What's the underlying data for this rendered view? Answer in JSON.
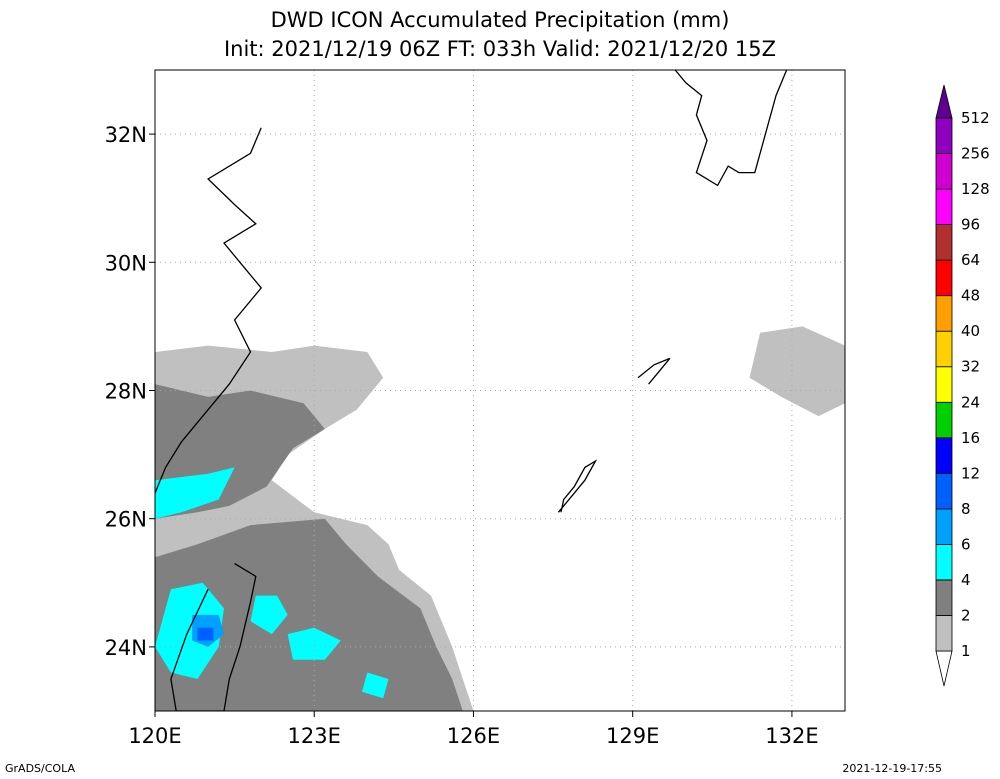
{
  "title_line1": "DWD ICON Accumulated Precipitation (mm)",
  "title_line2": "Init: 2021/12/19 06Z  FT: 033h  Valid: 2021/12/20 15Z",
  "footer_left": "GrADS/COLA",
  "footer_right": "2021-12-19-17:55",
  "chart_data": {
    "type": "heatmap",
    "title": "DWD ICON Accumulated Precipitation (mm)",
    "subtitle": "Init: 2021/12/19 06Z  FT: 033h  Valid: 2021/12/20 15Z",
    "xlim": [
      120,
      133
    ],
    "ylim": [
      23,
      33
    ],
    "grid": true,
    "x_ticks": [
      120,
      123,
      126,
      129,
      132
    ],
    "x_tick_labels": [
      "120E",
      "123E",
      "126E",
      "129E",
      "132E"
    ],
    "y_ticks": [
      24,
      26,
      28,
      30,
      32
    ],
    "y_tick_labels": [
      "24N",
      "26N",
      "28N",
      "30N",
      "32N"
    ],
    "legend": {
      "placement": "right",
      "levels": [
        1,
        2,
        4,
        6,
        8,
        12,
        16,
        24,
        32,
        40,
        48,
        64,
        96,
        128,
        256,
        512
      ],
      "colors": [
        "#ffffff",
        "#c0c0c0",
        "#808080",
        "#00ffff",
        "#00a0ff",
        "#0060ff",
        "#0000ff",
        "#00d000",
        "#ffff00",
        "#ffd000",
        "#ffa000",
        "#ff0000",
        "#b03030",
        "#ff00ff",
        "#d000d0",
        "#9000c0",
        "#600090"
      ]
    },
    "regions": [
      {
        "level": 1,
        "lonlat": [
          [
            120,
            28.6
          ],
          [
            121,
            28.7
          ],
          [
            122.2,
            28.6
          ],
          [
            123,
            28.7
          ],
          [
            124,
            28.6
          ],
          [
            124.3,
            28.2
          ],
          [
            123.8,
            27.7
          ],
          [
            123.2,
            27.4
          ],
          [
            122.5,
            27
          ],
          [
            122.2,
            26.6
          ],
          [
            123,
            26.1
          ],
          [
            124,
            25.9
          ],
          [
            124.4,
            25.6
          ],
          [
            124.6,
            25.2
          ],
          [
            125.2,
            24.8
          ],
          [
            125.6,
            24
          ],
          [
            125.8,
            23.5
          ],
          [
            126,
            23
          ],
          [
            120,
            23
          ]
        ]
      },
      {
        "level": 1,
        "lonlat": [
          [
            131.4,
            28.9
          ],
          [
            132.2,
            29
          ],
          [
            133,
            28.7
          ],
          [
            133,
            27.8
          ],
          [
            132.5,
            27.6
          ],
          [
            131.8,
            27.9
          ],
          [
            131.2,
            28.2
          ]
        ]
      },
      {
        "level": 2,
        "lonlat": [
          [
            120,
            28.1
          ],
          [
            121,
            27.9
          ],
          [
            121.8,
            28
          ],
          [
            122.8,
            27.8
          ],
          [
            123.2,
            27.4
          ],
          [
            122.6,
            27.1
          ],
          [
            122.1,
            26.5
          ],
          [
            121.4,
            26.2
          ],
          [
            120.8,
            26.1
          ],
          [
            120,
            26
          ]
        ]
      },
      {
        "level": 2,
        "lonlat": [
          [
            120,
            25.4
          ],
          [
            120.8,
            25.6
          ],
          [
            121.8,
            25.9
          ],
          [
            123.2,
            26
          ],
          [
            123.6,
            25.6
          ],
          [
            124.2,
            25.1
          ],
          [
            125,
            24.6
          ],
          [
            125.3,
            24
          ],
          [
            125.6,
            23.5
          ],
          [
            125.8,
            23
          ],
          [
            120,
            23
          ]
        ]
      },
      {
        "level": 4,
        "lonlat": [
          [
            120,
            26.6
          ],
          [
            121,
            26.7
          ],
          [
            121.5,
            26.8
          ],
          [
            121.2,
            26.3
          ],
          [
            120.5,
            26.1
          ],
          [
            120,
            26
          ]
        ]
      },
      {
        "level": 4,
        "lonlat": [
          [
            120.3,
            24.9
          ],
          [
            120.9,
            25
          ],
          [
            121.3,
            24.6
          ],
          [
            121.2,
            24
          ],
          [
            120.8,
            23.5
          ],
          [
            120.3,
            23.6
          ],
          [
            120,
            24
          ]
        ]
      },
      {
        "level": 4,
        "lonlat": [
          [
            121.9,
            24.8
          ],
          [
            122.3,
            24.8
          ],
          [
            122.5,
            24.5
          ],
          [
            122.2,
            24.2
          ],
          [
            121.8,
            24.4
          ]
        ]
      },
      {
        "level": 4,
        "lonlat": [
          [
            122.5,
            24.2
          ],
          [
            123,
            24.3
          ],
          [
            123.5,
            24.1
          ],
          [
            123.2,
            23.8
          ],
          [
            122.6,
            23.8
          ]
        ]
      },
      {
        "level": 4,
        "lonlat": [
          [
            124,
            23.6
          ],
          [
            124.4,
            23.5
          ],
          [
            124.3,
            23.2
          ],
          [
            123.9,
            23.3
          ]
        ]
      },
      {
        "level": 6,
        "lonlat": [
          [
            120.7,
            24.5
          ],
          [
            121.2,
            24.5
          ],
          [
            121.3,
            24.2
          ],
          [
            121,
            24
          ],
          [
            120.7,
            24.1
          ]
        ]
      },
      {
        "level": 8,
        "lonlat": [
          [
            120.8,
            24.3
          ],
          [
            121.1,
            24.3
          ],
          [
            121.1,
            24.1
          ],
          [
            120.8,
            24.1
          ]
        ]
      }
    ],
    "coastlines": [
      {
        "name": "China (Zhejiang-Fujian)",
        "lonlat": [
          [
            122,
            32.1
          ],
          [
            121.8,
            31.7
          ],
          [
            121,
            31.3
          ],
          [
            121.5,
            30.9
          ],
          [
            121.9,
            30.6
          ],
          [
            121.3,
            30.3
          ],
          [
            121.7,
            29.9
          ],
          [
            122,
            29.6
          ],
          [
            121.5,
            29.1
          ],
          [
            121.8,
            28.6
          ],
          [
            121.4,
            28.1
          ],
          [
            120.9,
            27.6
          ],
          [
            120.5,
            27.2
          ],
          [
            120.2,
            26.8
          ],
          [
            120,
            26.4
          ]
        ]
      },
      {
        "name": "Taiwan",
        "lonlat": [
          [
            121.5,
            25.3
          ],
          [
            121.9,
            25.1
          ],
          [
            121.8,
            24.7
          ],
          [
            121.6,
            24
          ],
          [
            121.4,
            23.5
          ],
          [
            121.3,
            23
          ],
          [
            120.4,
            23
          ],
          [
            120.3,
            23.5
          ],
          [
            120.6,
            24.2
          ],
          [
            121,
            24.9
          ]
        ]
      },
      {
        "name": "Okinawa",
        "lonlat": [
          [
            127.6,
            26.1
          ],
          [
            127.9,
            26.4
          ],
          [
            128.1,
            26.6
          ],
          [
            128.3,
            26.9
          ],
          [
            128.1,
            26.8
          ],
          [
            127.9,
            26.5
          ],
          [
            127.7,
            26.3
          ],
          [
            127.65,
            26.1
          ]
        ]
      },
      {
        "name": "Amami Oshima",
        "lonlat": [
          [
            129.1,
            28.2
          ],
          [
            129.4,
            28.4
          ],
          [
            129.7,
            28.5
          ],
          [
            129.5,
            28.3
          ],
          [
            129.3,
            28.1
          ]
        ]
      },
      {
        "name": "Kyushu",
        "lonlat": [
          [
            129.8,
            33
          ],
          [
            130,
            32.8
          ],
          [
            130.3,
            32.6
          ],
          [
            130.2,
            32.3
          ],
          [
            130.4,
            31.9
          ],
          [
            130.2,
            31.4
          ],
          [
            130.6,
            31.2
          ],
          [
            130.8,
            31.5
          ],
          [
            131,
            31.4
          ],
          [
            131.3,
            31.4
          ],
          [
            131.5,
            32
          ],
          [
            131.7,
            32.6
          ],
          [
            131.9,
            33
          ]
        ]
      }
    ]
  }
}
